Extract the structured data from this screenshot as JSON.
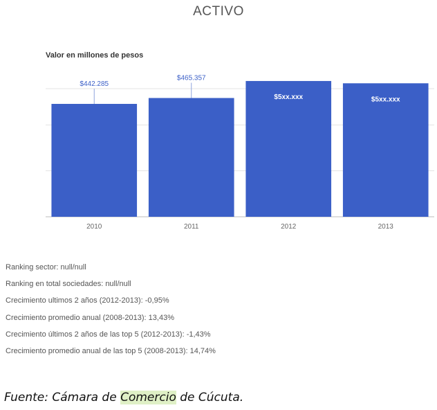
{
  "chart_data": {
    "type": "bar",
    "title": "ACTIVO",
    "subtitle": "Valor en millones de pesos",
    "categories": [
      "2010",
      "2011",
      "2012",
      "2013"
    ],
    "values": [
      442285,
      465357,
      532000,
      523000
    ],
    "data_labels": [
      "$442.285",
      "$465.357",
      "$5xx.xxx",
      "$5xx.xxx"
    ],
    "ylim": [
      0,
      540000
    ],
    "bar_color": "#3b5fc7",
    "grid": true,
    "xlabel": "",
    "ylabel": ""
  },
  "stats": [
    "Ranking sector: null/null",
    "Ranking en total sociedades: null/null",
    "Crecimiento ultimos 2 años (2012-2013): -0,95%",
    "Crecimiento promedio anual (2008-2013): 13,43%",
    "Crecimiento últimos 2 años de las top 5 (2012-2013): -1,43%",
    "Crecimiento promedio anual de las top 5 (2008-2013): 14,74%"
  ],
  "source": {
    "prefix": "Fuente: Cámara de ",
    "highlight": "Comercio",
    "suffix": " de Cúcuta."
  }
}
